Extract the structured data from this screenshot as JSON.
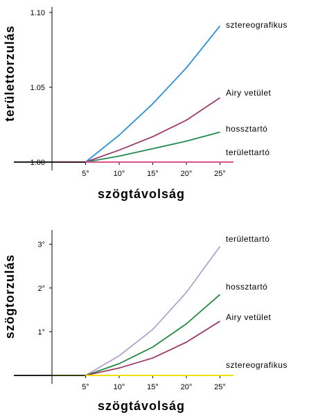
{
  "chart_data": [
    {
      "type": "line",
      "xlabel": "szögtávolság",
      "ylabel": "területtorzulás",
      "xlim": [
        0,
        27
      ],
      "ylim": [
        1.0,
        1.1
      ],
      "x_ticks": [
        {
          "value": 5,
          "label": "5°"
        },
        {
          "value": 10,
          "label": "10°"
        },
        {
          "value": 15,
          "label": "15°"
        },
        {
          "value": 20,
          "label": "20°"
        },
        {
          "value": 25,
          "label": "25°"
        }
      ],
      "y_ticks": [
        {
          "value": 1.0,
          "label": "1.00"
        },
        {
          "value": 1.05,
          "label": "1.05"
        },
        {
          "value": 1.1,
          "label": "1.10"
        }
      ],
      "grid": false,
      "series": [
        {
          "name": "sztereografikus",
          "color": "#2a8fd4",
          "x": [
            0,
            5,
            10,
            15,
            20,
            25
          ],
          "y": [
            1.0,
            1.0,
            1.018,
            1.039,
            1.063,
            1.091
          ]
        },
        {
          "name": "Airy vetület",
          "color": "#9b3a6a",
          "x": [
            0,
            5,
            10,
            15,
            20,
            25
          ],
          "y": [
            1.0,
            1.0,
            1.008,
            1.017,
            1.028,
            1.043
          ]
        },
        {
          "name": "hossztartó",
          "color": "#1f8a50",
          "x": [
            0,
            5,
            10,
            15,
            20,
            25
          ],
          "y": [
            1.0,
            1.0,
            1.004,
            1.009,
            1.014,
            1.02
          ]
        },
        {
          "name": "területtartó",
          "color": "#d8508c",
          "x": [
            0,
            5,
            10,
            15,
            20,
            25,
            27
          ],
          "y": [
            1.0,
            1.0,
            1.0,
            1.0,
            1.0,
            1.0,
            1.0
          ]
        }
      ]
    },
    {
      "type": "line",
      "xlabel": "szögtávolság",
      "ylabel": "szögtorzulás",
      "xlim": [
        0,
        27
      ],
      "ylim": [
        0,
        3.2
      ],
      "x_ticks": [
        {
          "value": 5,
          "label": "5°"
        },
        {
          "value": 10,
          "label": "10°"
        },
        {
          "value": 15,
          "label": "15°"
        },
        {
          "value": 20,
          "label": "20°"
        },
        {
          "value": 25,
          "label": "25°"
        }
      ],
      "y_ticks": [
        {
          "value": 1,
          "label": "1°"
        },
        {
          "value": 2,
          "label": "2°"
        },
        {
          "value": 3,
          "label": "3°"
        }
      ],
      "grid": false,
      "series": [
        {
          "name": "területtartó",
          "color": "#b3a3cc",
          "x": [
            0,
            5,
            10,
            15,
            20,
            25
          ],
          "y": [
            0,
            0,
            0.45,
            1.05,
            1.9,
            2.95
          ]
        },
        {
          "name": "hossztartó",
          "color": "#1f8a3e",
          "x": [
            0,
            5,
            10,
            15,
            20,
            25
          ],
          "y": [
            0,
            0,
            0.27,
            0.65,
            1.18,
            1.85
          ]
        },
        {
          "name": "Airy vetület",
          "color": "#9b3a6a",
          "x": [
            0,
            5,
            10,
            15,
            20,
            25
          ],
          "y": [
            0,
            0,
            0.17,
            0.4,
            0.76,
            1.24
          ]
        },
        {
          "name": "sztereografikus",
          "color": "#f0e000",
          "x": [
            0,
            5,
            10,
            15,
            20,
            25,
            27
          ],
          "y": [
            0,
            0,
            0,
            0,
            0,
            0,
            0
          ]
        }
      ]
    }
  ]
}
